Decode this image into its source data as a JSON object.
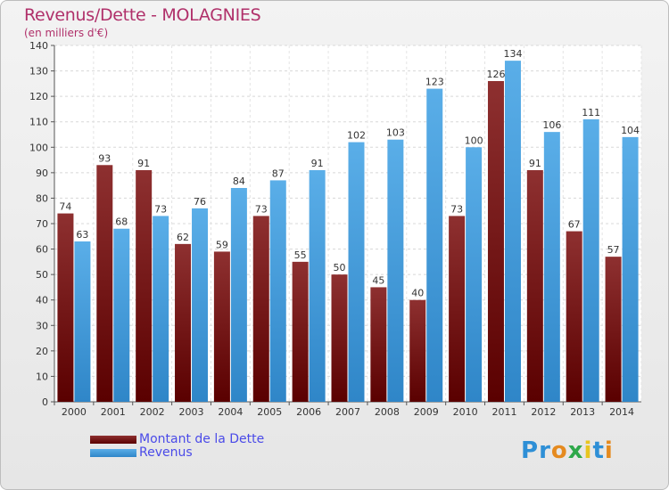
{
  "header": {
    "title": "Revenus/Dette - MOLAGNIES",
    "subtitle": "(en milliers d'€)"
  },
  "chart_data": {
    "type": "bar",
    "categories": [
      "2000",
      "2001",
      "2002",
      "2003",
      "2004",
      "2005",
      "2006",
      "2007",
      "2008",
      "2009",
      "2010",
      "2011",
      "2012",
      "2013",
      "2014"
    ],
    "series": [
      {
        "name": "Montant de la Dette",
        "color": "#7a1a1a",
        "values": [
          74,
          93,
          91,
          62,
          59,
          73,
          55,
          50,
          45,
          40,
          73,
          126,
          91,
          67,
          57
        ]
      },
      {
        "name": "Revenus",
        "color": "#3d9ee0",
        "values": [
          63,
          68,
          73,
          76,
          84,
          87,
          91,
          102,
          103,
          123,
          100,
          134,
          106,
          111,
          104
        ]
      }
    ],
    "ylim": [
      0,
      140
    ],
    "yticks": [
      0,
      10,
      20,
      30,
      40,
      50,
      60,
      70,
      80,
      90,
      100,
      110,
      120,
      130,
      140
    ],
    "grid": true,
    "legend_position": "bottom-left"
  },
  "legend": {
    "items": [
      {
        "label": "Montant de la Dette",
        "color": "#7a1a1a"
      },
      {
        "label": "Revenus",
        "color": "#3d9ee0"
      }
    ]
  },
  "logo": {
    "letters": [
      "P",
      "r",
      "o",
      "x",
      "i",
      "t",
      "i"
    ],
    "colors": [
      "#2e8fd6",
      "#2e8fd6",
      "#e58a1f",
      "#2ea84a",
      "#e8c51f",
      "#2e8fd6",
      "#e58a1f"
    ]
  }
}
